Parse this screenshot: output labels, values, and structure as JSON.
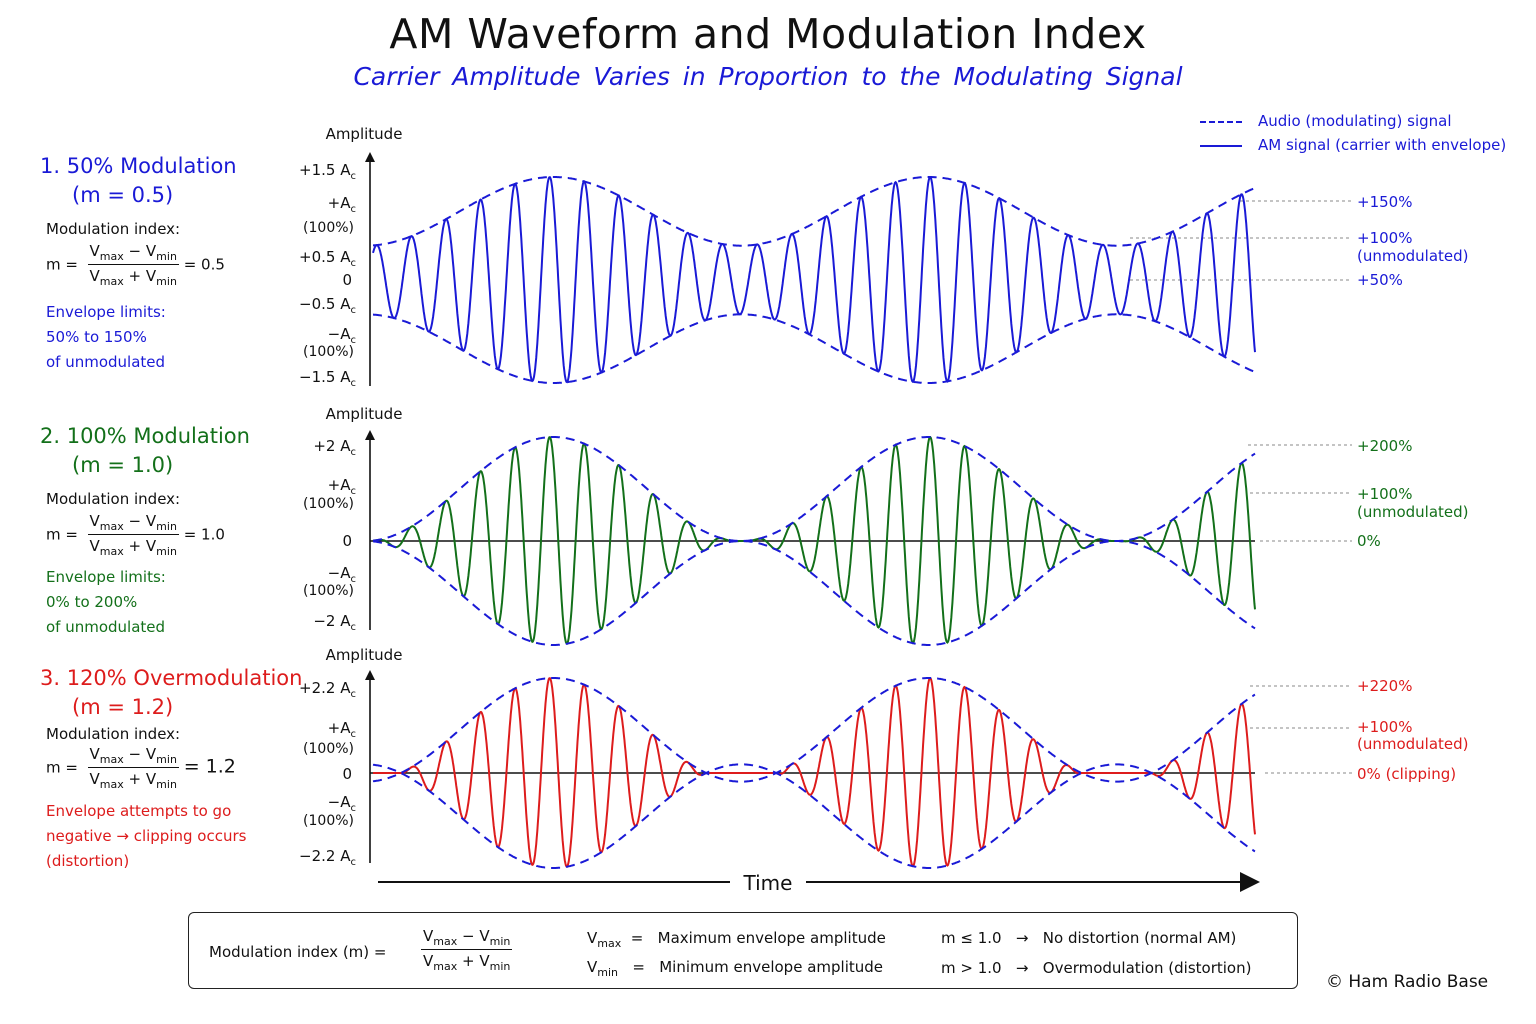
{
  "title": "AM Waveform and Modulation Index",
  "subtitle": "Carrier Amplitude Varies in Proportion to the Modulating Signal",
  "legend": {
    "modulating": "Audio (modulating) signal",
    "am": "AM signal (carrier with envelope)"
  },
  "axis_label": "Amplitude",
  "time_label": "Time",
  "colors": {
    "blue": "#1a1ad6",
    "green": "#13701a",
    "red": "#dd1c1c",
    "envelope": "#1a1ad6"
  },
  "sections": [
    {
      "heading1": "1. 50% Modulation",
      "heading2": "(m = 0.5)",
      "index_label": "Modulation index:",
      "m_value": "= 0.5",
      "note": [
        "Envelope limits:",
        "50% to 150%",
        "of unmodulated"
      ],
      "yticks": [
        "+1.5 A",
        "+A",
        "(100%)",
        "+0.5 A",
        "0",
        "−0.5 A",
        "−A",
        "(100%)",
        "−1.5 A"
      ],
      "right_labels": [
        "+150%",
        "+100%",
        "(unmodulated)",
        "+50%"
      ],
      "m": 0.5
    },
    {
      "heading1": "2. 100% Modulation",
      "heading2": "(m = 1.0)",
      "index_label": "Modulation index:",
      "m_value": "= 1.0",
      "note": [
        "Envelope limits:",
        "0% to 200%",
        "of unmodulated"
      ],
      "yticks": [
        "+2 A",
        "+A",
        "(100%)",
        "0",
        "−A",
        "(100%)",
        "−2 A"
      ],
      "right_labels": [
        "+200%",
        "+100%",
        "(unmodulated)",
        "0%"
      ],
      "m": 1.0
    },
    {
      "heading1": "3. 120% Overmodulation",
      "heading2": "(m = 1.2)",
      "index_label": "Modulation index:",
      "m_value": "= 1.2",
      "note": [
        "Envelope attempts to go",
        "negative → clipping occurs",
        "(distortion)"
      ],
      "yticks": [
        "+2.2 A",
        "+A",
        "(100%)",
        "0",
        "−A",
        "(100%)",
        "−2.2 A"
      ],
      "right_labels": [
        "+220%",
        "+100%",
        "(unmodulated)",
        "0% (clipping)"
      ],
      "m": 1.2
    }
  ],
  "formula": {
    "vmax": "V",
    "vmax_sub": "max",
    "vmin": "V",
    "vmin_sub": "min",
    "m": "m",
    "eq": "=",
    "minus": "−",
    "plus": "+"
  },
  "bottom_box": {
    "label": "Modulation index (m) =",
    "vmax_def": "Maximum envelope amplitude",
    "vmin_def": "Minimum envelope amplitude",
    "rule1_cond": "m ≤ 1.0",
    "rule1_text": "No distortion (normal AM)",
    "rule2_cond": "m > 1.0",
    "rule2_text": "Overmodulation (distortion)",
    "arrow": "→"
  },
  "copyright": "© Ham Radio Base"
}
